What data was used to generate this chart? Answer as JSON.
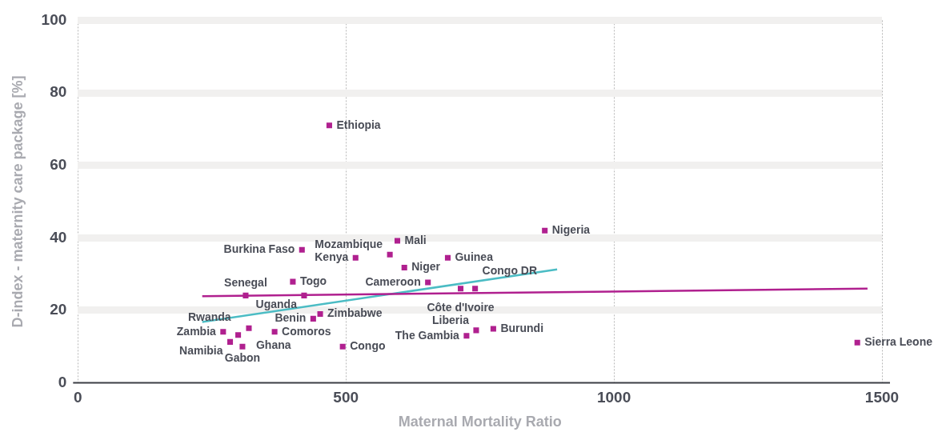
{
  "chart_data": {
    "type": "scatter",
    "xlabel": "Maternal Mortality Ratio",
    "ylabel": "D-index - maternity care package [%]",
    "xlim": [
      0,
      1500
    ],
    "xticks": [
      0,
      500,
      1000,
      1500
    ],
    "ylim": [
      0,
      100
    ],
    "yticks": [
      0,
      20,
      40,
      60,
      80,
      100
    ],
    "grid": true,
    "legend": false,
    "marker": "square",
    "series": [
      {
        "type": "line",
        "color": "#b0208f",
        "x": [
          232,
          1473
        ],
        "values": [
          23.9,
          26.0
        ],
        "marker": "none"
      },
      {
        "type": "line",
        "color": "#4bbcc4",
        "x": [
          232,
          894
        ],
        "values": [
          16.8,
          31.3
        ],
        "marker": "none"
      },
      {
        "type": "scatter",
        "color": "#b0208f",
        "x": [
          469,
          871,
          596,
          418,
          518,
          582,
          690,
          609,
          401,
          653,
          714,
          741,
          313,
          422,
          452,
          439,
          319,
          271,
          299,
          367,
          284,
          307,
          494,
          743,
          725,
          775,
          1454
        ],
        "values": [
          71.0,
          42.0,
          39.2,
          36.7,
          34.5,
          35.4,
          34.5,
          31.8,
          27.9,
          27.7,
          26.0,
          26.0,
          24.1,
          24.1,
          19.0,
          17.7,
          15.1,
          14.1,
          13.2,
          14.1,
          11.3,
          10.0,
          10.0,
          14.5,
          13.0,
          14.9,
          11.1
        ]
      }
    ],
    "annotations": [
      {
        "text": "Ethiopia",
        "x": 469,
        "y": 71.0
      },
      {
        "text": "Nigeria",
        "x": 871,
        "y": 42.0
      },
      {
        "text": "Mali",
        "x": 596,
        "y": 39.2
      },
      {
        "text": "Burkina Faso",
        "x": 418,
        "y": 36.7
      },
      {
        "text": "Kenya",
        "x": 518,
        "y": 34.5
      },
      {
        "text": "Mozambique",
        "x": 582,
        "y": 35.4
      },
      {
        "text": "Guinea",
        "x": 690,
        "y": 34.5
      },
      {
        "text": "Niger",
        "x": 609,
        "y": 31.8
      },
      {
        "text": "Togo",
        "x": 401,
        "y": 27.9
      },
      {
        "text": "Cameroon",
        "x": 653,
        "y": 27.7
      },
      {
        "text": "Côte d'Ivoire",
        "x": 714,
        "y": 26.0
      },
      {
        "text": "Congo DR",
        "x": 741,
        "y": 26.0
      },
      {
        "text": "Senegal",
        "x": 313,
        "y": 24.1
      },
      {
        "text": "Uganda",
        "x": 422,
        "y": 24.1
      },
      {
        "text": "Zimbabwe",
        "x": 452,
        "y": 19.0
      },
      {
        "text": "Benin",
        "x": 439,
        "y": 17.7
      },
      {
        "text": "Ghana",
        "x": 319,
        "y": 15.1
      },
      {
        "text": "Zambia",
        "x": 271,
        "y": 14.1
      },
      {
        "text": "Rwanda",
        "x": 299,
        "y": 13.2
      },
      {
        "text": "Comoros",
        "x": 367,
        "y": 14.1
      },
      {
        "text": "Namibia",
        "x": 284,
        "y": 11.3
      },
      {
        "text": "Gabon",
        "x": 307,
        "y": 10.0
      },
      {
        "text": "Congo",
        "x": 494,
        "y": 10.0
      },
      {
        "text": "Liberia",
        "x": 743,
        "y": 14.5
      },
      {
        "text": "The Gambia",
        "x": 725,
        "y": 13.0
      },
      {
        "text": "Burundi",
        "x": 775,
        "y": 14.9
      },
      {
        "text": "Sierra Leone",
        "x": 1454,
        "y": 11.1
      }
    ]
  }
}
